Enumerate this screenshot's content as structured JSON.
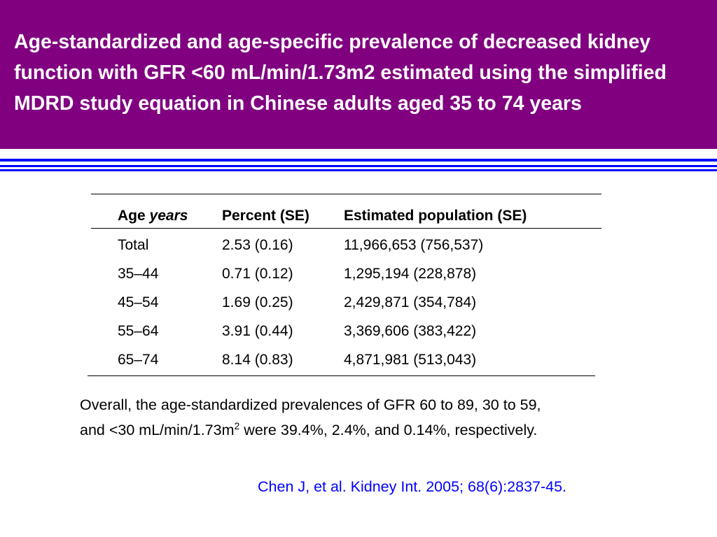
{
  "slide": {
    "title": "Age-standardized and age-specific prevalence of decreased kidney function with GFR <60 mL/min/1.73m2 estimated using the simplified MDRD study equation  in Chinese adults aged 35 to 74 years"
  },
  "table": {
    "headers": {
      "age_label": "Age",
      "age_unit": "years",
      "percent": "Percent (SE)",
      "population": "Estimated population (SE)"
    },
    "rows": [
      {
        "age": "Total",
        "percent": "2.53 (0.16)",
        "population": "11,966,653 (756,537)"
      },
      {
        "age": "35–44",
        "percent": "0.71 (0.12)",
        "population": "1,295,194 (228,878)"
      },
      {
        "age": "45–54",
        "percent": "1.69 (0.25)",
        "population": "2,429,871 (354,784)"
      },
      {
        "age": "55–64",
        "percent": "3.91 (0.44)",
        "population": "3,369,606 (383,422)"
      },
      {
        "age": "65–74",
        "percent": "8.14 (0.83)",
        "population": "4,871,981 (513,043)"
      }
    ]
  },
  "note": {
    "line1": "Overall, the age-standardized prevalences of GFR 60 to 89, 30 to 59,",
    "line2_before": "and <30 mL/min/1.73m",
    "superscript": "2",
    "line2_after": " were 39.4%, 2.4%, and 0.14%, respectively."
  },
  "citation": "Chen J, et al. Kidney Int. 2005; 68(6):2837-45.",
  "colors": {
    "title_background": "#800080",
    "title_text": "#ffffff",
    "rule": "#0000ff",
    "citation": "#0000ff"
  }
}
